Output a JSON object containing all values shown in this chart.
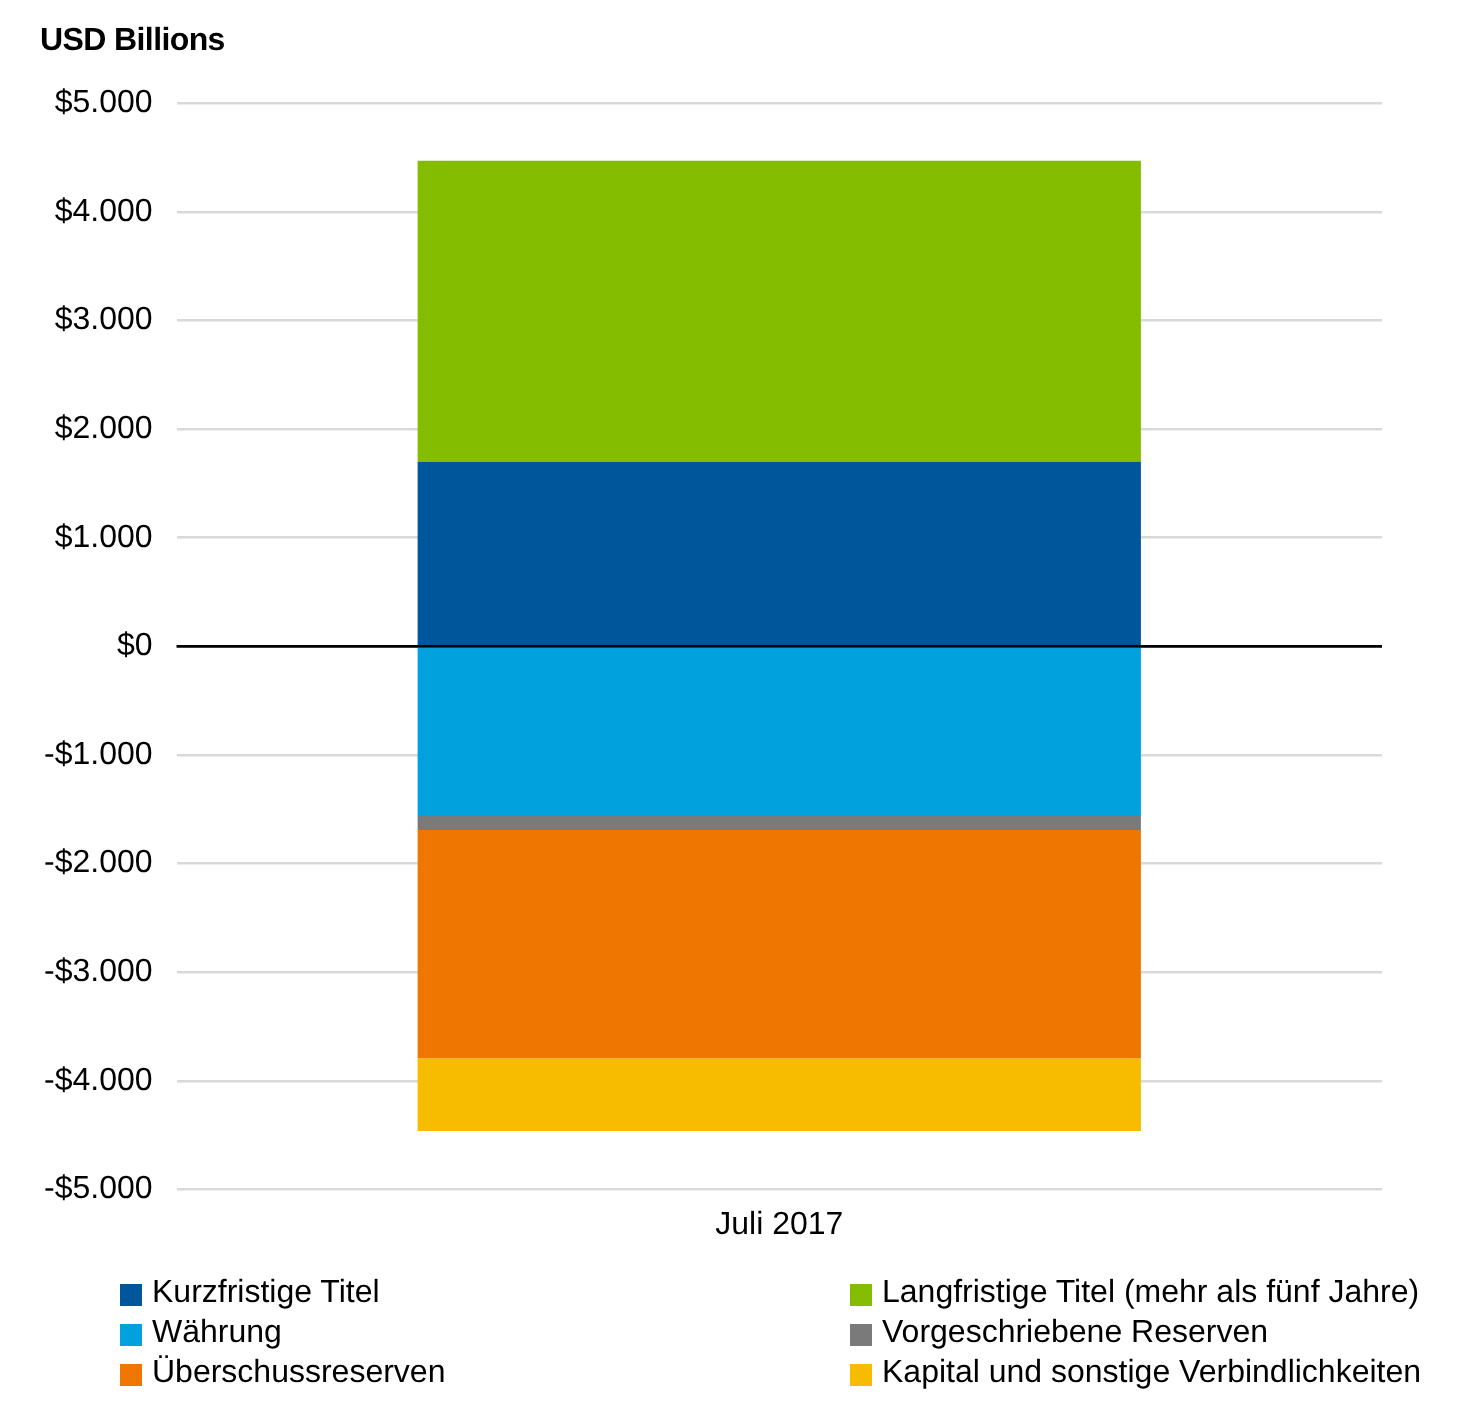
{
  "chart_data": {
    "type": "bar",
    "stacked": true,
    "ylabel": "USD Billions",
    "categories": [
      "Juli 2017"
    ],
    "series": [
      {
        "name": "Kurzfristige Titel",
        "color": "#00569a",
        "values": [
          1700
        ]
      },
      {
        "name": "Langfristige Titel (mehr als fünf Jahre)",
        "color": "#84bd00",
        "values": [
          2770
        ]
      },
      {
        "name": "Währung",
        "color": "#00a1dc",
        "values": [
          -1560
        ]
      },
      {
        "name": "Vorgeschriebene Reserven",
        "color": "#7a7a7a",
        "values": [
          -130
        ]
      },
      {
        "name": "Überschussreserven",
        "color": "#ee7601",
        "values": [
          -2100
        ]
      },
      {
        "name": "Kapital und sonstige Verbindlichkeiten",
        "color": "#f7bc00",
        "values": [
          -670
        ]
      }
    ],
    "ylim": [
      -5000,
      5000
    ],
    "yticks": [
      {
        "value": 5000,
        "label": "$5.000"
      },
      {
        "value": 4000,
        "label": "$4.000"
      },
      {
        "value": 3000,
        "label": "$3.000"
      },
      {
        "value": 2000,
        "label": "$2.000"
      },
      {
        "value": 1000,
        "label": "$1.000"
      },
      {
        "value": 0,
        "label": "$0"
      },
      {
        "value": -1000,
        "label": "-$1.000"
      },
      {
        "value": -2000,
        "label": "-$2.000"
      },
      {
        "value": -3000,
        "label": "-$3.000"
      },
      {
        "value": -4000,
        "label": "-$4.000"
      },
      {
        "value": -5000,
        "label": "-$5.000"
      }
    ],
    "ref_lines": [
      {
        "axis": "y",
        "value": 0,
        "color": "#000000"
      }
    ],
    "grid": "y",
    "legend": "bottom"
  }
}
